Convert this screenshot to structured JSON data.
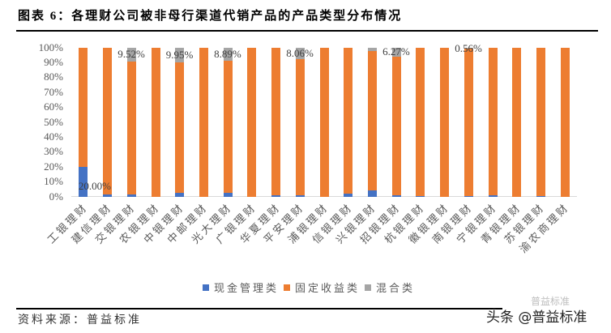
{
  "title": "图表 6：各理财公司被非母行渠道代销产品的产品类型分布情况",
  "source": "资料来源：普益标准",
  "watermark": {
    "main": "头条 @普益标准",
    "small": "普益标准"
  },
  "colors": {
    "cash": "#4472C4",
    "fixed": "#ED7D31",
    "mixed": "#A5A5A5",
    "axis": "#D9D9D9"
  },
  "legend": [
    {
      "label": "现金管理类",
      "color": "#4472C4"
    },
    {
      "label": "固定收益类",
      "color": "#ED7D31"
    },
    {
      "label": "混合类",
      "color": "#A5A5A5"
    }
  ],
  "chart_data": {
    "type": "bar",
    "stacked": true,
    "percent_stacked": true,
    "title": "图表 6：各理财公司被非母行渠道代销产品的产品类型分布情况",
    "xlabel": "",
    "ylabel": "",
    "ylim": [
      0,
      100
    ],
    "yticks": [
      "0%",
      "10%",
      "20%",
      "30%",
      "40%",
      "50%",
      "60%",
      "70%",
      "80%",
      "90%",
      "100%"
    ],
    "grid": false,
    "legend_position": "bottom",
    "categories": [
      "工银理财",
      "建信理财",
      "交银理财",
      "农银理财",
      "中银理财",
      "中邮理财",
      "光大理财",
      "广银理财",
      "华夏理财",
      "平安理财",
      "浦银理财",
      "信银理财",
      "兴银理财",
      "招银理财",
      "杭银理财",
      "徽银理财",
      "南银理财",
      "宁银理财",
      "青银理财",
      "苏银理财",
      "渝农商理财"
    ],
    "series": [
      {
        "name": "现金管理类",
        "color": "#4472C4",
        "values": [
          20.0,
          1.2,
          1.5,
          0,
          2.5,
          0,
          2.5,
          0,
          1.0,
          1.0,
          0,
          2.0,
          4.3,
          1.0,
          0.5,
          0,
          0.5,
          1.0,
          0,
          0.5,
          0
        ]
      },
      {
        "name": "固定收益类",
        "color": "#ED7D31",
        "values": [
          80.0,
          98.8,
          88.98,
          100,
          87.55,
          100,
          88.61,
          100,
          99.0,
          90.94,
          100,
          98.0,
          93.2,
          92.73,
          99.5,
          100,
          98.94,
          99.0,
          100,
          99.5,
          100
        ]
      },
      {
        "name": "混合类",
        "color": "#A5A5A5",
        "values": [
          0,
          0,
          9.52,
          0,
          9.95,
          0,
          8.89,
          0,
          0,
          8.06,
          0,
          0,
          2.5,
          6.27,
          0,
          0,
          0.56,
          0,
          0,
          0,
          0
        ]
      }
    ],
    "data_labels": [
      {
        "category_index": 0,
        "series": "现金管理类",
        "text": "20.00%"
      },
      {
        "category_index": 2,
        "series": "混合类",
        "text": "9.52%"
      },
      {
        "category_index": 4,
        "series": "混合类",
        "text": "9.95%"
      },
      {
        "category_index": 6,
        "series": "混合类",
        "text": "8.89%"
      },
      {
        "category_index": 9,
        "series": "混合类",
        "text": "8.06%"
      },
      {
        "category_index": 13,
        "series": "混合类",
        "text": "6.27%"
      },
      {
        "category_index": 16,
        "series": "混合类",
        "text": "0.56%"
      }
    ]
  }
}
